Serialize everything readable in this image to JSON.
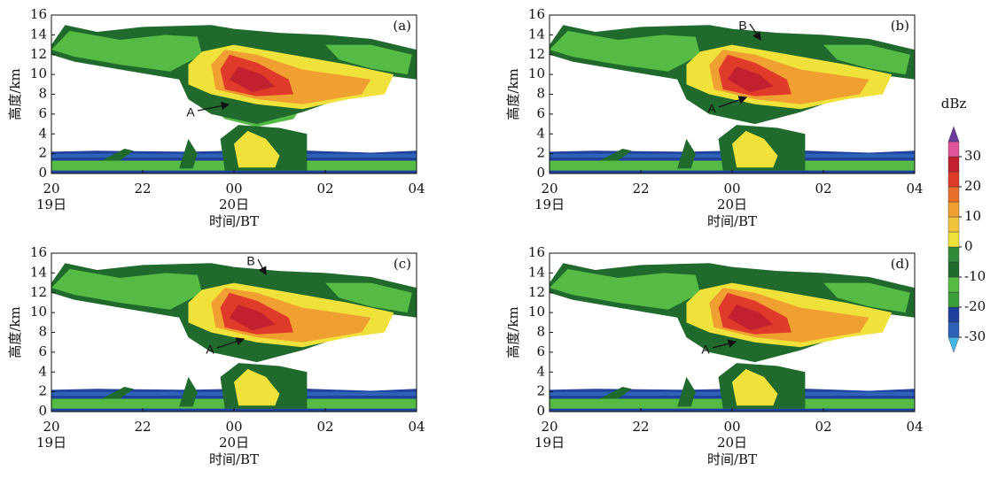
{
  "chart_data": [
    {
      "type": "heatmap",
      "panel": "(a)",
      "ylabel": "高度/km",
      "xlabel": "时间/BT",
      "xlim": [
        0,
        8
      ],
      "xticks": [
        {
          "value": 0,
          "label": "20"
        },
        {
          "value": 2,
          "label": "22"
        },
        {
          "value": 4,
          "label": "00"
        },
        {
          "value": 6,
          "label": "02"
        },
        {
          "value": 8,
          "label": "04"
        }
      ],
      "xdates": [
        {
          "value": 0,
          "label": "19日"
        },
        {
          "value": 4,
          "label": "20日"
        }
      ],
      "ylim": [
        0,
        16
      ],
      "yticks": [
        0,
        2,
        4,
        6,
        8,
        10,
        12,
        14,
        16
      ],
      "annotations": [
        "A"
      ]
    },
    {
      "type": "heatmap",
      "panel": "(b)",
      "ylabel": "高度/km",
      "xlabel": "时间/BT",
      "xlim": [
        0,
        8
      ],
      "xticks": [
        {
          "value": 0,
          "label": "20"
        },
        {
          "value": 2,
          "label": "22"
        },
        {
          "value": 4,
          "label": "00"
        },
        {
          "value": 6,
          "label": "02"
        },
        {
          "value": 8,
          "label": "04"
        }
      ],
      "xdates": [
        {
          "value": 0,
          "label": "19日"
        },
        {
          "value": 4,
          "label": "20日"
        }
      ],
      "ylim": [
        0,
        16
      ],
      "yticks": [
        0,
        2,
        4,
        6,
        8,
        10,
        12,
        14,
        16
      ],
      "annotations": [
        "A",
        "B"
      ]
    },
    {
      "type": "heatmap",
      "panel": "(c)",
      "ylabel": "高度/km",
      "xlabel": "时间/BT",
      "xlim": [
        0,
        8
      ],
      "xticks": [
        {
          "value": 0,
          "label": "20"
        },
        {
          "value": 2,
          "label": "22"
        },
        {
          "value": 4,
          "label": "00"
        },
        {
          "value": 6,
          "label": "02"
        },
        {
          "value": 8,
          "label": "04"
        }
      ],
      "xdates": [
        {
          "value": 0,
          "label": "19日"
        },
        {
          "value": 4,
          "label": "20日"
        }
      ],
      "ylim": [
        0,
        16
      ],
      "yticks": [
        0,
        2,
        4,
        6,
        8,
        10,
        12,
        14,
        16
      ],
      "annotations": [
        "A",
        "B"
      ]
    },
    {
      "type": "heatmap",
      "panel": "(d)",
      "ylabel": "高度/km",
      "xlabel": "时间/BT",
      "xlim": [
        0,
        8
      ],
      "xticks": [
        {
          "value": 0,
          "label": "20"
        },
        {
          "value": 2,
          "label": "22"
        },
        {
          "value": 4,
          "label": "00"
        },
        {
          "value": 6,
          "label": "02"
        },
        {
          "value": 8,
          "label": "04"
        }
      ],
      "xdates": [
        {
          "value": 0,
          "label": "19日"
        },
        {
          "value": 4,
          "label": "20日"
        }
      ],
      "ylim": [
        0,
        16
      ],
      "yticks": [
        0,
        2,
        4,
        6,
        8,
        10,
        12,
        14,
        16
      ],
      "annotations": [
        "A"
      ]
    }
  ],
  "colorbar": {
    "title": "dBz",
    "lim": [
      -35,
      40
    ],
    "ticks": [
      -30,
      -20,
      -10,
      0,
      10,
      20,
      30
    ],
    "colors": [
      "#45b8e8",
      "#2d62b6",
      "#1f409c",
      "#3a9e3a",
      "#55bb44",
      "#1f6a2c",
      "#2f8a3a",
      "#f0e23a",
      "#f2c43a",
      "#f0a030",
      "#e8702a",
      "#e03a2a",
      "#c21f2f",
      "#e0559a",
      "#6a3a9a"
    ]
  }
}
